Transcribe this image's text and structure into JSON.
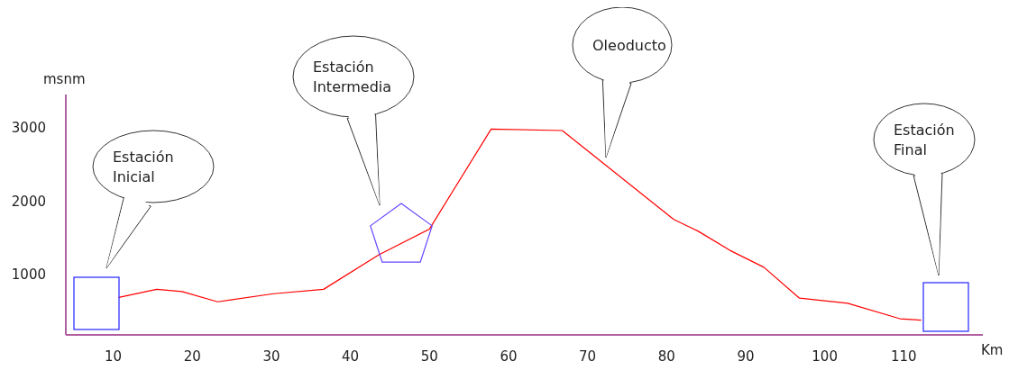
{
  "chart_data": {
    "type": "line",
    "xlabel": "Km",
    "ylabel": "msnm",
    "x": [
      10.7,
      15.5,
      18.7,
      23.2,
      30.3,
      36.6,
      43.6,
      50.0,
      57.8,
      66.8,
      80.9,
      84.0,
      88.0,
      92.3,
      96.8,
      102.9,
      109.5,
      112.2
    ],
    "series": [
      {
        "color": "#ff0000",
        "values": [
          690,
          800,
          770,
          630,
          740,
          800,
          1270,
          1620,
          2980,
          2960,
          1750,
          1590,
          1330,
          1100,
          680,
          610,
          400,
          380
        ]
      }
    ],
    "xlim": [
      4,
      120
    ],
    "xticks": [
      10,
      20,
      30,
      40,
      50,
      60,
      70,
      80,
      90,
      100,
      110
    ],
    "ylim": [
      180,
      3450
    ],
    "yticks": [
      1000,
      2000,
      3000
    ],
    "annotations": [
      "Estación Inicial",
      "Estación Intermedia",
      "Oleoducto",
      "Estación Final"
    ]
  }
}
